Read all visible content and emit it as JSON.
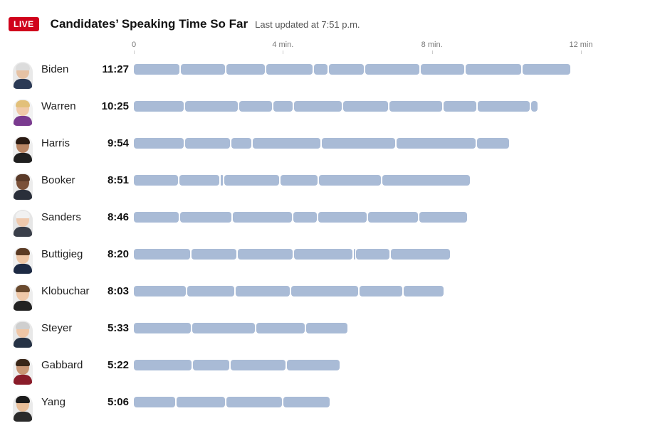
{
  "header": {
    "badge": "LIVE",
    "title": "Candidates’ Speaking Time So Far",
    "updated": "Last updated at 7:51 p.m."
  },
  "colors": {
    "badge": "#d0021b",
    "bar": "#a9bbd6",
    "text": "#121212",
    "axis_text": "#777777"
  },
  "chart_data": {
    "type": "bar",
    "title": "Candidates’ Speaking Time So Far",
    "xlabel": "",
    "ylabel": "",
    "xlim": [
      0,
      12
    ],
    "unit": "minutes",
    "ticks": [
      {
        "value": 0,
        "label": "0"
      },
      {
        "value": 4,
        "label": "4 min."
      },
      {
        "value": 8,
        "label": "8 min."
      },
      {
        "value": 12,
        "label": "12 min"
      }
    ],
    "categories": [
      "Biden",
      "Warren",
      "Harris",
      "Booker",
      "Sanders",
      "Buttigieg",
      "Klobuchar",
      "Steyer",
      "Gabbard",
      "Yang"
    ],
    "values": [
      11.45,
      10.42,
      9.9,
      8.85,
      8.77,
      8.33,
      8.05,
      5.55,
      5.37,
      5.1
    ],
    "candidates": [
      {
        "name": "Biden",
        "time": "11:27",
        "total": 11.45,
        "segments": [
          1.27,
          1.22,
          1.07,
          1.28,
          0.4,
          0.97,
          1.5,
          1.2,
          1.53,
          1.27
        ]
      },
      {
        "name": "Warren",
        "time": "10:25",
        "total": 10.42,
        "segments": [
          1.37,
          1.46,
          0.92,
          0.54,
          1.33,
          1.24,
          1.45,
          0.92,
          1.44,
          0.17
        ]
      },
      {
        "name": "Harris",
        "time": "9:54",
        "total": 9.9,
        "segments": [
          1.37,
          1.24,
          0.59,
          1.84,
          2.01,
          2.16,
          0.86
        ]
      },
      {
        "name": "Booker",
        "time": "8:51",
        "total": 8.85,
        "segments": [
          1.22,
          1.12,
          0.08,
          1.51,
          1.04,
          1.69,
          2.36
        ]
      },
      {
        "name": "Sanders",
        "time": "8:46",
        "total": 8.77,
        "segments": [
          1.25,
          1.4,
          1.63,
          0.66,
          1.34,
          1.38,
          1.28
        ]
      },
      {
        "name": "Buttigieg",
        "time": "8:20",
        "total": 8.33,
        "segments": [
          1.55,
          1.24,
          1.5,
          1.61,
          0.07,
          0.93,
          1.59
        ]
      },
      {
        "name": "Klobuchar",
        "time": "8:03",
        "total": 8.05,
        "segments": [
          1.44,
          1.3,
          1.48,
          1.84,
          1.19,
          1.06
        ]
      },
      {
        "name": "Steyer",
        "time": "5:33",
        "total": 5.55,
        "segments": [
          1.57,
          1.71,
          1.34,
          1.11
        ]
      },
      {
        "name": "Gabbard",
        "time": "5:22",
        "total": 5.37,
        "segments": [
          1.59,
          1.01,
          1.51,
          1.42
        ]
      },
      {
        "name": "Yang",
        "time": "5:06",
        "total": 5.1,
        "segments": [
          1.14,
          1.34,
          1.54,
          1.24
        ]
      }
    ]
  }
}
